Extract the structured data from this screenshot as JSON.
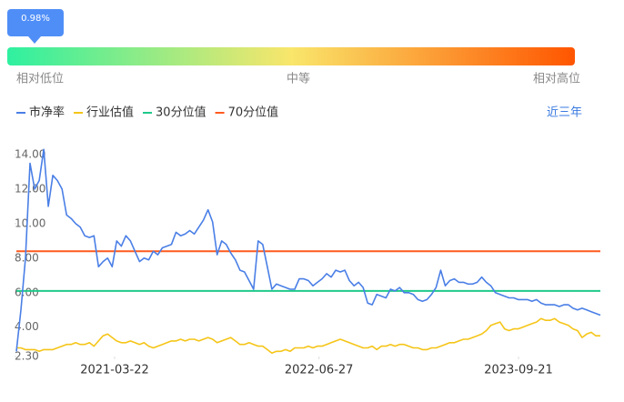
{
  "chart_data": {
    "type": "line",
    "percentile": 0.98,
    "percentile_label": "0.98%",
    "scale_labels": [
      "相对低位",
      "中等",
      "相对高位"
    ],
    "range_label": "近三年",
    "xlim": [
      "2020-08-12",
      "2024-03-24"
    ],
    "xticks": [
      "2021-03-22",
      "2022-06-27",
      "2023-09-21"
    ],
    "ylim": [
      2.3,
      14
    ],
    "yticks": [
      {
        "value": 2.3,
        "label": "2.30"
      },
      {
        "value": 4,
        "label": "4.00"
      },
      {
        "value": 6,
        "label": "6.00"
      },
      {
        "value": 8,
        "label": "8.00"
      },
      {
        "value": 10,
        "label": "10.00"
      },
      {
        "value": 12,
        "label": "12.00"
      },
      {
        "value": 14,
        "label": "14.00"
      }
    ],
    "series": [
      {
        "name": "市净率",
        "color": "#4a7fe6",
        "values": [
          2.6,
          5,
          8,
          13.5,
          12,
          12.5,
          14.3,
          11,
          12.8,
          12.5,
          12,
          10.5,
          10.3,
          10,
          9.8,
          9.3,
          9.2,
          9.3,
          7.5,
          7.8,
          8,
          7.5,
          9,
          8.7,
          9.3,
          9,
          8.4,
          7.8,
          8,
          7.9,
          8.4,
          8.2,
          8.6,
          8.7,
          8.8,
          9.5,
          9.3,
          9.4,
          9.6,
          9.4,
          9.8,
          10.2,
          10.8,
          10.1,
          8.2,
          9,
          8.8,
          8.3,
          7.9,
          7.3,
          7.2,
          6.7,
          6.2,
          9,
          8.8,
          7.5,
          6.2,
          6.5,
          6.4,
          6.3,
          6.2,
          6.2,
          6.8,
          6.8,
          6.7,
          6.4,
          6.6,
          6.8,
          7.1,
          6.9,
          7.3,
          7.2,
          7.3,
          6.7,
          6.4,
          6.6,
          6.3,
          5.4,
          5.3,
          5.9,
          5.8,
          5.7,
          6.2,
          6.1,
          6.3,
          6,
          6,
          5.9,
          5.6,
          5.5,
          5.6,
          5.9,
          6.3,
          7.3,
          6.4,
          6.7,
          6.8,
          6.6,
          6.6,
          6.5,
          6.5,
          6.6,
          6.9,
          6.6,
          6.4,
          6,
          5.9,
          5.8,
          5.7,
          5.7,
          5.6,
          5.6,
          5.6,
          5.5,
          5.6,
          5.4,
          5.3,
          5.3,
          5.3,
          5.2,
          5.3,
          5.3,
          5.1,
          5,
          5.1,
          5,
          4.9,
          4.8,
          4.7
        ]
      },
      {
        "name": "行业估值",
        "color": "#f5c518",
        "values": [
          2.8,
          2.8,
          2.7,
          2.7,
          2.7,
          2.6,
          2.7,
          2.7,
          2.7,
          2.8,
          2.9,
          3,
          3,
          3.1,
          3,
          3,
          3.1,
          2.9,
          3.2,
          3.5,
          3.6,
          3.4,
          3.2,
          3.1,
          3.1,
          3.2,
          3.1,
          3,
          3.1,
          2.9,
          2.8,
          2.9,
          3,
          3.1,
          3.2,
          3.2,
          3.3,
          3.2,
          3.3,
          3.3,
          3.2,
          3.3,
          3.4,
          3.3,
          3.1,
          3.2,
          3.3,
          3.4,
          3.2,
          3,
          3,
          3.1,
          3,
          2.9,
          2.9,
          2.7,
          2.5,
          2.6,
          2.6,
          2.7,
          2.6,
          2.8,
          2.8,
          2.8,
          2.9,
          2.8,
          2.9,
          2.9,
          3,
          3.1,
          3.2,
          3.3,
          3.2,
          3.1,
          3,
          2.9,
          2.8,
          2.8,
          2.9,
          2.7,
          2.9,
          2.9,
          3,
          2.9,
          3,
          3,
          2.9,
          2.8,
          2.8,
          2.7,
          2.7,
          2.8,
          2.8,
          2.9,
          3,
          3.1,
          3.1,
          3.2,
          3.3,
          3.3,
          3.4,
          3.5,
          3.6,
          3.8,
          4.1,
          4.2,
          4.3,
          3.9,
          3.8,
          3.9,
          3.9,
          4,
          4.1,
          4.2,
          4.3,
          4.5,
          4.4,
          4.4,
          4.5,
          4.3,
          4.2,
          4.1,
          3.9,
          3.8,
          3.4,
          3.6,
          3.7,
          3.5,
          3.5
        ]
      }
    ],
    "reference_lines": [
      {
        "name": "30分位值",
        "color": "#1fc98a",
        "value": 6.1
      },
      {
        "name": "70分位值",
        "color": "#ff5a1f",
        "value": 8.4
      }
    ]
  }
}
